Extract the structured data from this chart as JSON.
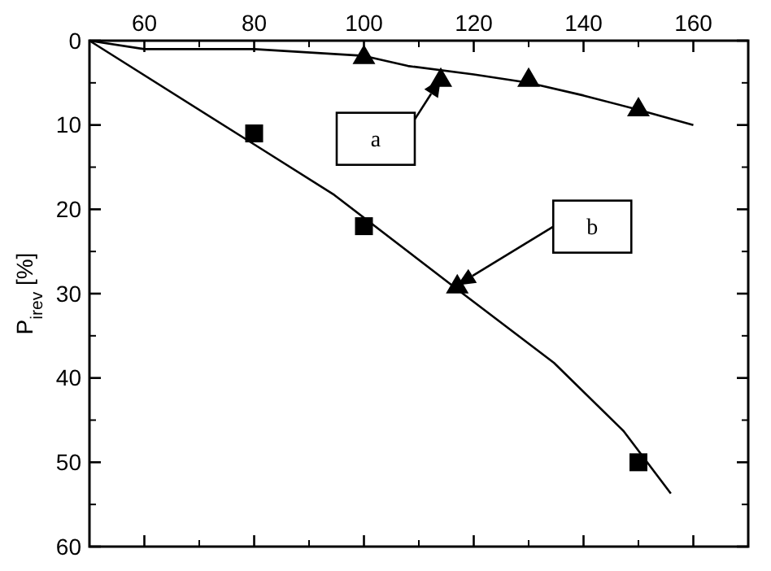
{
  "chart_data": {
    "type": "line",
    "ylabel": "P$_{irev}$ [%]",
    "xlim": [
      50,
      170
    ],
    "xticks": [
      60,
      80,
      100,
      120,
      140,
      160
    ],
    "ylim": [
      60,
      0
    ],
    "yticks": [
      0,
      10,
      20,
      30,
      40,
      50,
      60
    ],
    "grid": false,
    "tick_labels": "xy",
    "series": [
      {
        "type": "line",
        "color": "#000000",
        "marker": "none",
        "x": [
          50,
          60,
          80,
          100,
          108,
          120,
          130,
          140,
          150,
          160
        ],
        "values": [
          0,
          1,
          1,
          1.8,
          3,
          4,
          5,
          6.5,
          8.2,
          10
        ]
      },
      {
        "type": "line",
        "color": "#000000",
        "marker": "none",
        "x": [
          50,
          80,
          94.6,
          117,
          134.6,
          147.3,
          155.9
        ],
        "values": [
          0,
          12.3,
          18.3,
          29.5,
          38.2,
          46.3,
          53.7
        ]
      },
      {
        "type": "scatter",
        "color": "#000000",
        "marker": "triangle",
        "x": [
          100,
          114,
          130,
          150,
          117
        ],
        "values": [
          1.8,
          4.5,
          4.5,
          8,
          29
        ]
      },
      {
        "type": "scatter",
        "color": "#000000",
        "marker": "square",
        "x": [
          80,
          100,
          150
        ],
        "values": [
          11,
          22,
          50
        ]
      }
    ],
    "annotations": [
      "a",
      "b"
    ]
  }
}
